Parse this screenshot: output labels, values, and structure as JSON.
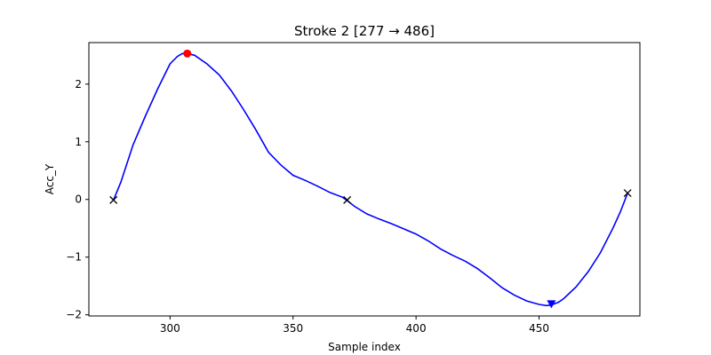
{
  "chart_data": {
    "type": "line",
    "title": "Stroke 2  [277 → 486]",
    "xlabel": "Sample index",
    "ylabel": "Acc_Y",
    "xlim": [
      267,
      491
    ],
    "ylim": [
      -2.02,
      2.72
    ],
    "grid": false,
    "line_color": "#0000ff",
    "x_ticks": [
      300,
      350,
      400,
      450
    ],
    "x_tick_labels": [
      "300",
      "350",
      "400",
      "450"
    ],
    "y_ticks": [
      -2,
      -1,
      0,
      1,
      2
    ],
    "y_tick_labels": [
      "−2",
      "−1",
      "0",
      "1",
      "2"
    ],
    "series": [
      {
        "x": [
          277,
          280,
          285,
          290,
          295,
          300,
          303,
          305,
          307,
          310,
          315,
          320,
          325,
          330,
          335,
          340,
          345,
          350,
          355,
          360,
          365,
          370,
          372,
          375,
          380,
          385,
          390,
          395,
          400,
          405,
          410,
          415,
          420,
          425,
          430,
          435,
          440,
          445,
          450,
          453,
          455,
          458,
          460,
          465,
          470,
          475,
          480,
          483,
          486
        ],
        "y": [
          -0.01,
          0.3,
          0.95,
          1.45,
          1.92,
          2.35,
          2.48,
          2.53,
          2.53,
          2.5,
          2.35,
          2.16,
          1.88,
          1.55,
          1.2,
          0.82,
          0.6,
          0.42,
          0.33,
          0.23,
          0.12,
          0.04,
          -0.02,
          -0.12,
          -0.25,
          -0.34,
          -0.42,
          -0.51,
          -0.6,
          -0.72,
          -0.86,
          -0.97,
          -1.07,
          -1.2,
          -1.36,
          -1.53,
          -1.66,
          -1.76,
          -1.82,
          -1.84,
          -1.83,
          -1.78,
          -1.72,
          -1.52,
          -1.25,
          -0.92,
          -0.5,
          -0.22,
          0.11
        ]
      }
    ],
    "markers": [
      {
        "type": "endpoint",
        "symbol": "x",
        "color": "#000000",
        "x": 277,
        "y": -0.01
      },
      {
        "type": "zero-crossing",
        "symbol": "x",
        "color": "#000000",
        "x": 372,
        "y": -0.01
      },
      {
        "type": "endpoint",
        "symbol": "x",
        "color": "#000000",
        "x": 486,
        "y": 0.11
      },
      {
        "type": "max",
        "symbol": "circle",
        "color": "#ff0000",
        "x": 307,
        "y": 2.53
      },
      {
        "type": "min",
        "symbol": "triangle-down",
        "color": "#0000ff",
        "x": 455,
        "y": -1.81
      }
    ]
  }
}
